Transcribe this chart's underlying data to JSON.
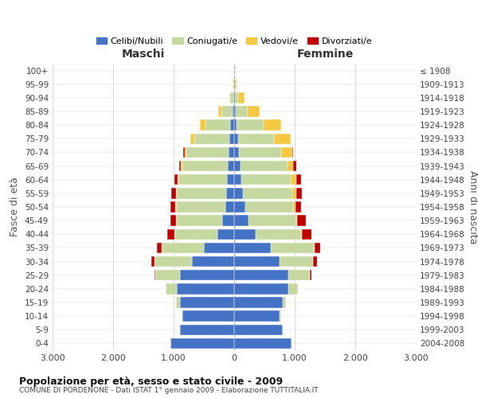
{
  "age_groups": [
    "0-4",
    "5-9",
    "10-14",
    "15-19",
    "20-24",
    "25-29",
    "30-34",
    "35-39",
    "40-44",
    "45-49",
    "50-54",
    "55-59",
    "60-64",
    "65-69",
    "70-74",
    "75-79",
    "80-84",
    "85-89",
    "90-94",
    "95-99",
    "100+"
  ],
  "birth_years": [
    "2004-2008",
    "1999-2003",
    "1994-1998",
    "1989-1993",
    "1984-1988",
    "1979-1983",
    "1974-1978",
    "1969-1973",
    "1964-1968",
    "1959-1963",
    "1954-1958",
    "1949-1953",
    "1944-1948",
    "1939-1943",
    "1934-1938",
    "1929-1933",
    "1924-1928",
    "1919-1923",
    "1914-1918",
    "1909-1913",
    "≤ 1908"
  ],
  "males": {
    "celibe": [
      1050,
      900,
      850,
      900,
      950,
      900,
      700,
      500,
      280,
      200,
      150,
      130,
      120,
      100,
      90,
      80,
      60,
      30,
      10,
      5,
      2
    ],
    "coniugato": [
      2,
      5,
      20,
      60,
      180,
      400,
      620,
      700,
      700,
      750,
      810,
      820,
      800,
      760,
      700,
      580,
      420,
      180,
      50,
      15,
      2
    ],
    "vedovo": [
      0,
      0,
      0,
      0,
      1,
      2,
      2,
      2,
      3,
      5,
      8,
      10,
      10,
      20,
      30,
      60,
      80,
      50,
      20,
      5,
      1
    ],
    "divorziato": [
      0,
      0,
      0,
      2,
      5,
      20,
      50,
      80,
      120,
      100,
      80,
      80,
      60,
      30,
      20,
      10,
      5,
      0,
      0,
      0,
      0
    ]
  },
  "females": {
    "nubile": [
      950,
      800,
      750,
      800,
      900,
      900,
      750,
      600,
      350,
      240,
      180,
      140,
      120,
      100,
      80,
      60,
      40,
      25,
      15,
      5,
      2
    ],
    "coniugata": [
      2,
      5,
      20,
      50,
      150,
      350,
      550,
      720,
      760,
      780,
      790,
      820,
      820,
      780,
      700,
      600,
      450,
      200,
      50,
      10,
      2
    ],
    "vedova": [
      0,
      0,
      0,
      0,
      1,
      2,
      3,
      5,
      10,
      20,
      40,
      60,
      80,
      100,
      180,
      270,
      280,
      200,
      100,
      30,
      3
    ],
    "divorziata": [
      0,
      0,
      0,
      2,
      5,
      20,
      60,
      100,
      160,
      140,
      100,
      100,
      80,
      40,
      20,
      10,
      5,
      0,
      0,
      0,
      0
    ]
  },
  "colors": {
    "celibe": "#4472C4",
    "coniugato": "#C5D8A0",
    "vedovo": "#F5C842",
    "divorziato": "#C00000"
  },
  "xlim": 3000,
  "title": "Popolazione per età, sesso e stato civile - 2009",
  "subtitle": "COMUNE DI PORDENONE - Dati ISTAT 1° gennaio 2009 - Elaborazione TUTTITALIA.IT",
  "ylabel_left": "Fasce di età",
  "ylabel_right": "Anni di nascita",
  "xlabel_left": "Maschi",
  "xlabel_right": "Femmine",
  "bg_color": "#ffffff",
  "grid_color": "#cccccc"
}
